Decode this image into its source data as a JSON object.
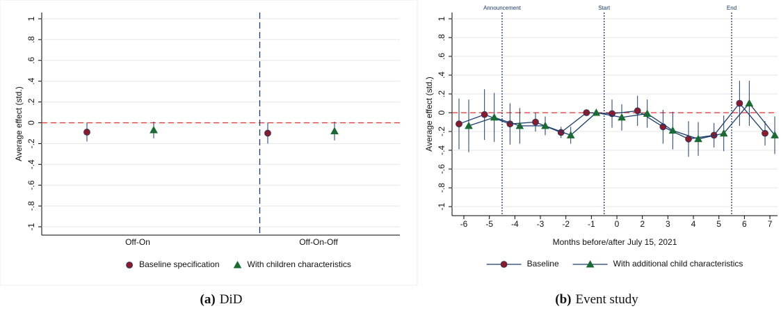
{
  "chart_data": [
    {
      "type": "dot",
      "ylabel": "Average effect (std.)",
      "categories": [
        "Off-On",
        "Off-On-Off"
      ],
      "series": [
        {
          "name": "Baseline specification",
          "color": "#8b1a2b",
          "marker": "circle",
          "values": [
            -0.09,
            -0.1
          ],
          "errors": [
            0.09,
            0.1
          ]
        },
        {
          "name": "With children characteristics",
          "color": "#1a6b33",
          "marker": "triangle",
          "values": [
            -0.07,
            -0.08
          ],
          "errors": [
            0.08,
            0.09
          ]
        }
      ],
      "ylim": [
        -1,
        1
      ],
      "yticks": [
        -1,
        {
          "value": -0.8,
          "label": "-.8"
        },
        {
          "value": -0.6,
          "label": "-.6"
        },
        {
          "value": -0.4,
          "label": "-.4"
        },
        {
          "value": -0.2,
          "label": "-.2"
        },
        0,
        {
          "value": 0.2,
          "label": ".2"
        },
        {
          "value": 0.4,
          "label": ".4"
        },
        {
          "value": 0.6,
          "label": ".6"
        },
        {
          "value": 0.8,
          "label": ".8"
        },
        1
      ],
      "reference_line": 0,
      "grid": true,
      "legend": "bottom",
      "caption_label": "(a)",
      "caption": "DiD"
    },
    {
      "type": "line",
      "ylabel": "Average effect (std.)",
      "xlabel": "Months before/after July 15, 2021",
      "categories": [
        "-6",
        "-5",
        "-4",
        "-3",
        "-2",
        "-1",
        "0",
        "2",
        "3",
        "4",
        "5",
        "6",
        "7"
      ],
      "series": [
        {
          "name": "Baseline",
          "color": "#8b1a2b",
          "marker": "circle",
          "line_color": "#1a3a6b",
          "values": [
            -0.12,
            -0.02,
            -0.12,
            -0.1,
            -0.21,
            0.0,
            -0.01,
            0.02,
            -0.15,
            -0.28,
            -0.24,
            0.1,
            -0.22
          ],
          "errors": [
            0.27,
            0.27,
            0.22,
            0.1,
            0.06,
            null,
            0.15,
            0.16,
            0.18,
            0.19,
            0.13,
            0.24,
            0.13
          ]
        },
        {
          "name": "With additional child characteristics",
          "color": "#1a6b33",
          "marker": "triangle",
          "line_color": "#1a3a6b",
          "values": [
            -0.14,
            -0.05,
            -0.14,
            -0.14,
            -0.24,
            0.0,
            -0.05,
            -0.01,
            -0.19,
            -0.28,
            -0.22,
            0.1,
            -0.24
          ],
          "errors": [
            0.28,
            0.26,
            0.19,
            0.1,
            0.09,
            null,
            0.14,
            0.15,
            0.2,
            0.18,
            0.19,
            0.24,
            0.2
          ]
        }
      ],
      "ylim": [
        -1,
        1
      ],
      "yticks": [
        -1,
        {
          "value": -0.8,
          "label": "-.8"
        },
        {
          "value": -0.6,
          "label": "-.6"
        },
        {
          "value": -0.4,
          "label": "-.4"
        },
        {
          "value": -0.2,
          "label": "-.2"
        },
        0,
        {
          "value": 0.2,
          "label": ".2"
        },
        {
          "value": 0.4,
          "label": ".4"
        },
        {
          "value": 0.6,
          "label": ".6"
        },
        {
          "value": 0.8,
          "label": ".8"
        },
        1
      ],
      "reference_line": 0,
      "grid": true,
      "legend": "bottom",
      "annotations": [
        {
          "label": "Announcement"
        },
        {
          "label": "Start"
        },
        {
          "label": "End"
        }
      ],
      "caption_label": "(b)",
      "caption": "Event study"
    }
  ]
}
